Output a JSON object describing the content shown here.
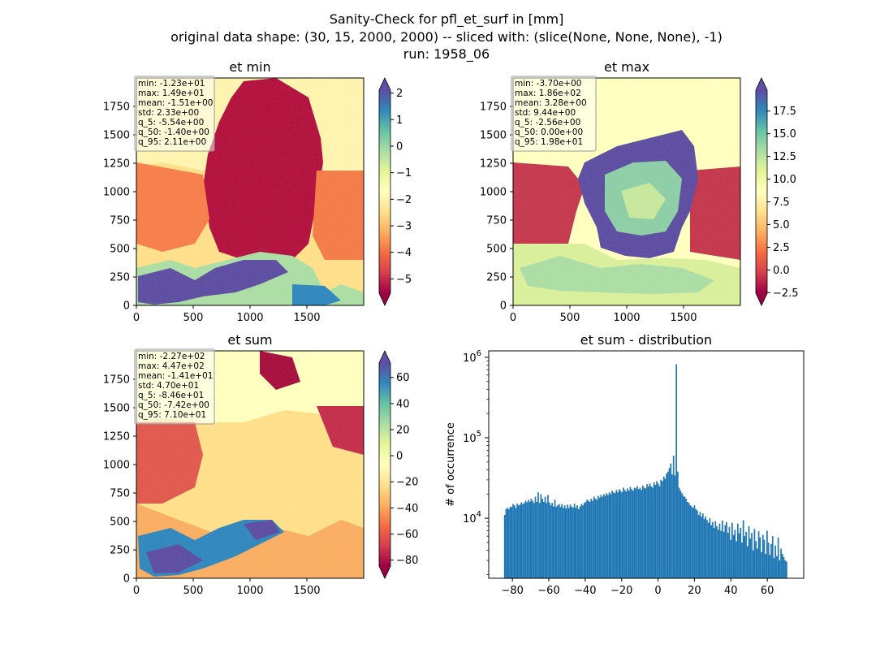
{
  "figure": {
    "suptitle_lines": [
      "Sanity-Check for pfl_et_surf in [mm]",
      "original data shape: (30, 15, 2000, 2000) -- sliced with: (slice(None, None, None), -1)",
      "run: 1958_06"
    ]
  },
  "chart_data": [
    {
      "type": "heatmap",
      "title": "et min",
      "xlim": [
        0,
        2000
      ],
      "ylim": [
        0,
        2000
      ],
      "xticks": [
        0,
        500,
        1000,
        1500
      ],
      "yticks": [
        0,
        250,
        500,
        750,
        1000,
        1250,
        1500,
        1750
      ],
      "colormap": "Spectral",
      "colorbar": {
        "ticks": [
          2,
          1,
          0,
          -1,
          -2,
          -3,
          -4,
          -5
        ],
        "tick_labels": [
          "2",
          "1",
          "0",
          "−1",
          "−2",
          "−3",
          "−4",
          "−5"
        ],
        "range": [
          -5.54,
          2.11
        ],
        "extend": "both"
      },
      "stats": [
        "min: -1.23e+01",
        "max: 1.49e+01",
        "mean: -1.51e+00",
        "std: 2.33e+00",
        "q_5: -5.54e+00",
        "q_50: -1.40e+00",
        "q_95: 2.11e+00"
      ]
    },
    {
      "type": "heatmap",
      "title": "et max",
      "xlim": [
        0,
        2000
      ],
      "ylim": [
        0,
        2000
      ],
      "xticks": [
        0,
        500,
        1000,
        1500
      ],
      "yticks": [
        0,
        250,
        500,
        750,
        1000,
        1250,
        1500,
        1750
      ],
      "colormap": "Spectral",
      "colorbar": {
        "ticks": [
          17.5,
          15.0,
          12.5,
          10.0,
          7.5,
          5.0,
          2.5,
          0.0,
          -2.5
        ],
        "tick_labels": [
          "17.5",
          "15.0",
          "12.5",
          "10.0",
          "7.5",
          "5.0",
          "2.5",
          "0.0",
          "−2.5"
        ],
        "range": [
          -2.56,
          19.8
        ],
        "extend": "both"
      },
      "stats": [
        "min: -3.70e+00",
        "max: 1.86e+02",
        "mean: 3.28e+00",
        "std: 9.44e+00",
        "q_5: -2.56e+00",
        "q_50: 0.00e+00",
        "q_95: 1.98e+01"
      ]
    },
    {
      "type": "heatmap",
      "title": "et sum",
      "xlim": [
        0,
        2000
      ],
      "ylim": [
        0,
        2000
      ],
      "xticks": [
        0,
        500,
        1000,
        1500
      ],
      "yticks": [
        0,
        250,
        500,
        750,
        1000,
        1250,
        1500,
        1750
      ],
      "colormap": "Spectral",
      "colorbar": {
        "ticks": [
          60,
          40,
          20,
          0,
          -20,
          -40,
          -60,
          -80
        ],
        "tick_labels": [
          "60",
          "40",
          "20",
          "0",
          "−20",
          "−40",
          "−60",
          "−80"
        ],
        "range": [
          -84.6,
          71.0
        ],
        "extend": "both"
      },
      "stats": [
        "min: -2.27e+02",
        "max: 4.47e+02",
        "mean: -1.41e+01",
        "std: 4.70e+01",
        "q_5: -8.46e+01",
        "q_50: -7.42e+00",
        "q_95: 7.10e+01"
      ]
    },
    {
      "type": "bar",
      "title": "et sum - distribution",
      "ylabel": "# of occurrence",
      "xlabel": "",
      "yscale": "log",
      "xlim": [
        -93,
        80
      ],
      "ylim": [
        1800,
        1200000
      ],
      "xticks": [
        -80,
        -60,
        -40,
        -20,
        0,
        20,
        40,
        60
      ],
      "xtick_labels": [
        "−80",
        "−60",
        "−40",
        "−20",
        "0",
        "20",
        "40",
        "60"
      ],
      "yticks": [
        10000,
        100000,
        1000000
      ],
      "bin_range": [
        -84.6,
        71.0
      ],
      "color": "#1f77b4",
      "counts": [
        11000,
        13000,
        13500,
        13000,
        14000,
        13800,
        15000,
        14500,
        13500,
        15200,
        14500,
        14800,
        15800,
        15000,
        15500,
        16500,
        15800,
        17000,
        16000,
        17500,
        16500,
        15500,
        18500,
        16000,
        21000,
        15500,
        20000,
        17500,
        16000,
        18500,
        15500,
        19500,
        15800,
        14500,
        15500,
        14000,
        17000,
        14000,
        14500,
        15000,
        13800,
        15000,
        13500,
        14500,
        13200,
        14800,
        13500,
        14800,
        14000,
        13600,
        15200,
        13500,
        14500,
        13000,
        14000,
        15000,
        14500,
        15500,
        16000,
        17000,
        16500,
        16000,
        17500,
        16500,
        18500,
        17500,
        17000,
        19000,
        18000,
        19500,
        18500,
        20000,
        19000,
        20500,
        19500,
        21000,
        20000,
        22000,
        21000,
        20500,
        22500,
        21000,
        23000,
        22000,
        21000,
        24000,
        22500,
        21500,
        23500,
        22000,
        24500,
        23000,
        22000,
        24000,
        23500,
        25000,
        23000,
        24000,
        22500,
        25500,
        24000,
        23500,
        26500,
        25000,
        27000,
        25000,
        24000,
        28000,
        26000,
        29000,
        27000,
        25000,
        30000,
        29000,
        33000,
        31000,
        36000,
        38000,
        42000,
        48000,
        35000,
        60000,
        34000,
        820000,
        38000,
        24000,
        22000,
        20500,
        19000,
        18500,
        17500,
        16000,
        15500,
        14500,
        14000,
        13500,
        14500,
        13000,
        12500,
        11000,
        12000,
        10500,
        11500,
        9800,
        10500,
        9500,
        8800,
        10000,
        8200,
        9000,
        7600,
        9200,
        8000,
        7200,
        8600,
        7000,
        9400,
        6800,
        8200,
        9000,
        6600,
        7800,
        5400,
        8800,
        6200,
        7200,
        5200,
        8600,
        6500,
        7600,
        5000,
        9500,
        6000,
        6800,
        4500,
        8000,
        5600,
        6600,
        4000,
        7400,
        5200,
        4200,
        6900,
        5800,
        3800,
        6200,
        5400,
        3600,
        7000,
        5000,
        3500,
        4800,
        6000,
        3200,
        4600,
        3400,
        5800,
        3000,
        4200,
        3600,
        3300,
        3000,
        2900
      ]
    }
  ],
  "colors": {
    "histogram": "#1f77b4",
    "spectral_dark_red": "#9e0142",
    "spectral_yellow": "#ffffbf",
    "spectral_dark_blue": "#5e4fa2"
  }
}
